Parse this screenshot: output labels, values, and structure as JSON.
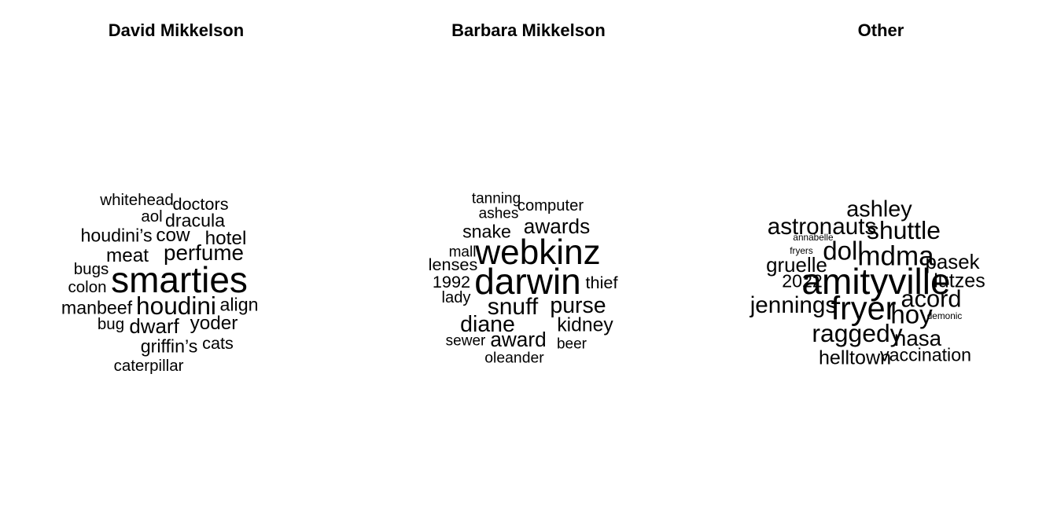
{
  "chart_data": [
    {
      "type": "wordcloud",
      "title": "David Mikkelson",
      "words": [
        {
          "text": "smarties",
          "weight": 1.0
        },
        {
          "text": "houdini",
          "weight": 0.62
        },
        {
          "text": "perfume",
          "weight": 0.52
        },
        {
          "text": "dwarf",
          "weight": 0.47
        },
        {
          "text": "cow",
          "weight": 0.43
        },
        {
          "text": "meat",
          "weight": 0.43
        },
        {
          "text": "hotel",
          "weight": 0.43
        },
        {
          "text": "yoder",
          "weight": 0.43
        },
        {
          "text": "dracula",
          "weight": 0.4
        },
        {
          "text": "align",
          "weight": 0.4
        },
        {
          "text": "manbeef",
          "weight": 0.4
        },
        {
          "text": "houdini’s",
          "weight": 0.4
        },
        {
          "text": "griffin’s",
          "weight": 0.4
        },
        {
          "text": "doctors",
          "weight": 0.36
        },
        {
          "text": "cats",
          "weight": 0.36
        },
        {
          "text": "whitehead",
          "weight": 0.33
        },
        {
          "text": "aol",
          "weight": 0.33
        },
        {
          "text": "bugs",
          "weight": 0.33
        },
        {
          "text": "colon",
          "weight": 0.33
        },
        {
          "text": "bug",
          "weight": 0.33
        },
        {
          "text": "caterpillar",
          "weight": 0.33
        }
      ]
    },
    {
      "type": "wordcloud",
      "title": "Barbara Mikkelson",
      "words": [
        {
          "text": "darwin",
          "weight": 1.0
        },
        {
          "text": "webkinz",
          "weight": 0.95
        },
        {
          "text": "snuff",
          "weight": 0.58
        },
        {
          "text": "diane",
          "weight": 0.54
        },
        {
          "text": "purse",
          "weight": 0.54
        },
        {
          "text": "award",
          "weight": 0.48
        },
        {
          "text": "awards",
          "weight": 0.48
        },
        {
          "text": "kidney",
          "weight": 0.44
        },
        {
          "text": "snake",
          "weight": 0.4
        },
        {
          "text": "lenses",
          "weight": 0.36
        },
        {
          "text": "1992",
          "weight": 0.36
        },
        {
          "text": "thief",
          "weight": 0.36
        },
        {
          "text": "computer",
          "weight": 0.32
        },
        {
          "text": "lady",
          "weight": 0.32
        },
        {
          "text": "oleander",
          "weight": 0.3
        },
        {
          "text": "tanning",
          "weight": 0.29
        },
        {
          "text": "ashes",
          "weight": 0.29
        },
        {
          "text": "mall",
          "weight": 0.29
        },
        {
          "text": "sewer",
          "weight": 0.29
        },
        {
          "text": "beer",
          "weight": 0.29
        }
      ]
    },
    {
      "type": "wordcloud",
      "title": "Other",
      "words": [
        {
          "text": "amityville",
          "weight": 1.0
        },
        {
          "text": "fryer",
          "weight": 0.88
        },
        {
          "text": "mdma",
          "weight": 0.71
        },
        {
          "text": "doll",
          "weight": 0.66
        },
        {
          "text": "hoy",
          "weight": 0.66
        },
        {
          "text": "raggedy",
          "weight": 0.63
        },
        {
          "text": "shuttle",
          "weight": 0.63
        },
        {
          "text": "acord",
          "weight": 0.6
        },
        {
          "text": "jennings",
          "weight": 0.57
        },
        {
          "text": "astronauts",
          "weight": 0.57
        },
        {
          "text": "ashley",
          "weight": 0.55
        },
        {
          "text": "nasa",
          "weight": 0.52
        },
        {
          "text": "gruelle",
          "weight": 0.47
        },
        {
          "text": "pasek",
          "weight": 0.47
        },
        {
          "text": "helltown",
          "weight": 0.45
        },
        {
          "text": "lutzes",
          "weight": 0.45
        },
        {
          "text": "vaccination",
          "weight": 0.4
        },
        {
          "text": "2022",
          "weight": 0.4
        },
        {
          "text": "annabelle",
          "weight": 0.1
        },
        {
          "text": "fryers",
          "weight": 0.1
        },
        {
          "text": "demonic",
          "weight": 0.1
        }
      ]
    }
  ]
}
